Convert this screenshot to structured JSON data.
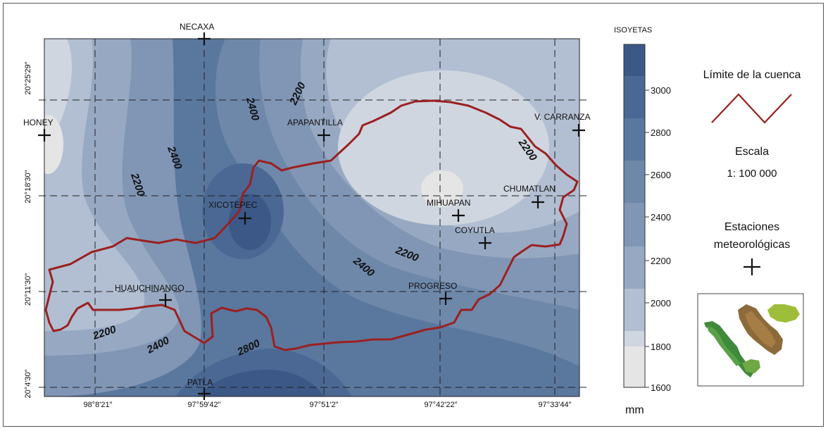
{
  "legend": {
    "title": "ISOYETAS",
    "unit": "mm",
    "ticks": [
      "3000",
      "2800",
      "2600",
      "2400",
      "2200",
      "2000",
      "1800",
      "1600"
    ],
    "colors": [
      "#3b5887",
      "#4a6893",
      "#5a779e",
      "#6e88aa",
      "#8196b5",
      "#97a9c2",
      "#b2bfd2",
      "#cfd6e0",
      "#e5e5e5"
    ]
  },
  "side_panel": {
    "boundary_label": "Límite de la cuenca",
    "scale_label": "Escala",
    "scale_value": "1: 100 000",
    "stations_label_1": "Estaciones",
    "stations_label_2": "meteorológicas",
    "boundary_color": "#9b2020",
    "inset_icon": "mexico-locator-map-icon"
  },
  "axes": {
    "longitude_labels": [
      "98°8'21\"",
      "97°59'42\"",
      "97°51'2\"",
      "97°42'22\"",
      "97°33'44\""
    ],
    "latitude_labels": [
      "20°25'29\"",
      "20°18'30\"",
      "20°11'30\"",
      "20°4'30\""
    ]
  },
  "stations": {
    "necaxa": "NECAXA",
    "honey": "HONEY",
    "apapantilla": "APAPANTILLA",
    "v_carranza": "V. CARRANZA",
    "xicotepec": "XICOTEPEC",
    "mihuapan": "MIHUAPAN",
    "chumatlan": "CHUMATLAN",
    "coyutla": "COYUTLA",
    "huauchinango": "HUAUCHINANGO",
    "progreso": "PROGRESO",
    "patla": "PATLA"
  },
  "isohyet_labels": {
    "a": "2400",
    "b": "2200",
    "c": "2400",
    "d": "2200",
    "e": "2200",
    "f": "2200",
    "g": "2400",
    "h": "2200",
    "i": "2400",
    "j": "2800"
  }
}
